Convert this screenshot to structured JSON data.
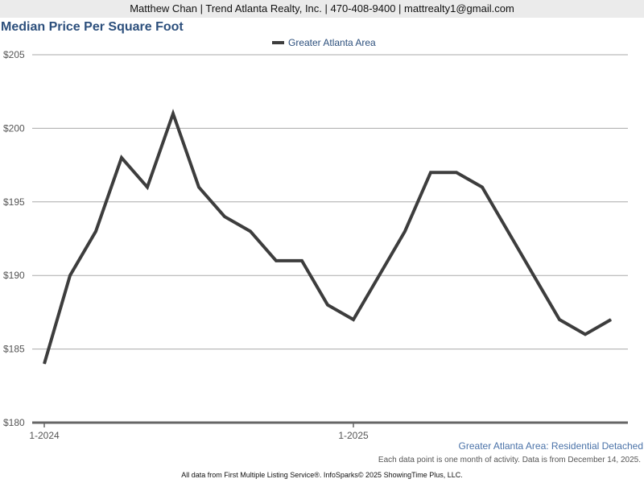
{
  "header": {
    "contact": "Matthew Chan | Trend Atlanta Realty, Inc. | 470-408-9400 | mattrealty1@gmail.com"
  },
  "chart_data": {
    "type": "line",
    "title": "Median Price Per Square Foot",
    "xlabel": "",
    "ylabel": "",
    "ylim": [
      180,
      205
    ],
    "yticks": [
      180,
      185,
      190,
      195,
      200,
      205
    ],
    "ytick_labels": [
      "$180",
      "$185",
      "$190",
      "$195",
      "$200",
      "$205"
    ],
    "xtick_labels": [
      {
        "label": "1-2024",
        "index": 0
      },
      {
        "label": "1-2025",
        "index": 12
      }
    ],
    "x": [
      "1-2024",
      "2-2024",
      "3-2024",
      "4-2024",
      "5-2024",
      "6-2024",
      "7-2024",
      "8-2024",
      "9-2024",
      "10-2024",
      "11-2024",
      "12-2024",
      "1-2025",
      "2-2025",
      "3-2025",
      "4-2025",
      "5-2025",
      "6-2025",
      "7-2025",
      "8-2025",
      "9-2025",
      "10-2025",
      "11-2025"
    ],
    "series": [
      {
        "name": "Greater Atlanta Area",
        "color": "#3d3d3d",
        "values": [
          184,
          190,
          193,
          198,
          196,
          201,
          196,
          194,
          193,
          191,
          191,
          188,
          187,
          190,
          193,
          197,
          197,
          196,
          193,
          190,
          187,
          186,
          187
        ]
      }
    ],
    "legend": "top-center",
    "grid": true
  },
  "subtitle": "Greater Atlanta Area: Residential Detached",
  "note": "Each data point is one month of activity. Data is from December 14, 2025.",
  "footer": "All data from First Multiple Listing Service®. InfoSparks© 2025 ShowingTime Plus, LLC."
}
